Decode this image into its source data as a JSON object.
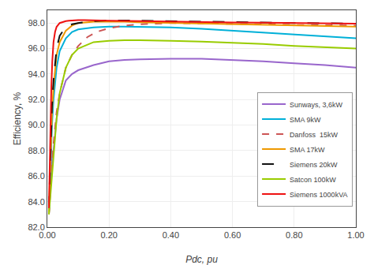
{
  "chart_data": {
    "type": "line",
    "x_label": "Pdc, pu",
    "y_label": "Efficiency, %",
    "xlim": [
      0.0,
      1.0
    ],
    "ylim": [
      82.0,
      99.0
    ],
    "xticks": [
      {
        "value": 0.0,
        "label": "0.00"
      },
      {
        "value": 0.2,
        "label": "0.20"
      },
      {
        "value": 0.4,
        "label": "0.40"
      },
      {
        "value": 0.6,
        "label": "0.60"
      },
      {
        "value": 0.8,
        "label": "0.80"
      },
      {
        "value": 1.0,
        "label": "1.00"
      }
    ],
    "yticks": [
      {
        "value": 82.0,
        "label": "82.0"
      },
      {
        "value": 84.0,
        "label": "84.0"
      },
      {
        "value": 86.0,
        "label": "86.0"
      },
      {
        "value": 88.0,
        "label": "88.0"
      },
      {
        "value": 90.0,
        "label": "90.0"
      },
      {
        "value": 92.0,
        "label": "92.0"
      },
      {
        "value": 94.0,
        "label": "94.0"
      },
      {
        "value": 96.0,
        "label": "96.0"
      },
      {
        "value": 98.0,
        "label": "98.0"
      }
    ],
    "grid": true,
    "legend": "right",
    "series": [
      {
        "name": "Sunways, 3,6kW",
        "color": "#9966cc",
        "line_style": "solid",
        "x": [
          0.005,
          0.01,
          0.015,
          0.02,
          0.03,
          0.04,
          0.06,
          0.08,
          0.1,
          0.15,
          0.2,
          0.25,
          0.3,
          0.4,
          0.5,
          0.6,
          0.7,
          0.8,
          0.9,
          1.0
        ],
        "values": [
          83.0,
          85.5,
          87.0,
          88.0,
          90.5,
          92.0,
          93.5,
          94.0,
          94.3,
          94.7,
          95.0,
          95.1,
          95.15,
          95.2,
          95.2,
          95.1,
          95.0,
          94.85,
          94.7,
          94.5
        ]
      },
      {
        "name": "SMA 9kW",
        "color": "#00b0d8",
        "line_style": "solid",
        "x": [
          0.005,
          0.01,
          0.015,
          0.02,
          0.03,
          0.04,
          0.06,
          0.08,
          0.1,
          0.15,
          0.2,
          0.25,
          0.3,
          0.4,
          0.5,
          0.6,
          0.7,
          0.8,
          0.9,
          1.0
        ],
        "values": [
          83.0,
          87.0,
          90.0,
          92.0,
          94.5,
          95.8,
          96.8,
          97.3,
          97.5,
          97.65,
          97.72,
          97.72,
          97.7,
          97.65,
          97.55,
          97.4,
          97.25,
          97.1,
          96.95,
          96.8
        ]
      },
      {
        "name": "Danfoss  15kW",
        "color": "#cc5555",
        "line_style": "dashed",
        "x": [
          0.005,
          0.01,
          0.015,
          0.02,
          0.03,
          0.04,
          0.06,
          0.08,
          0.1,
          0.13,
          0.16,
          0.2,
          0.25,
          0.3,
          0.4,
          0.5,
          0.6,
          0.7,
          0.8,
          0.9,
          1.0
        ],
        "values": [
          83.0,
          85.0,
          87.0,
          88.5,
          91.0,
          92.5,
          94.5,
          95.5,
          96.2,
          96.9,
          97.3,
          97.6,
          97.8,
          97.9,
          98.0,
          97.98,
          97.95,
          97.9,
          97.85,
          97.82,
          97.8
        ]
      },
      {
        "name": "SMA 17kW",
        "color": "#ee9900",
        "line_style": "solid",
        "x": [
          0.005,
          0.01,
          0.015,
          0.02,
          0.03,
          0.04,
          0.06,
          0.08,
          0.1,
          0.15,
          0.2,
          0.25,
          0.3,
          0.4,
          0.5,
          0.6,
          0.7,
          0.8,
          0.9,
          1.0
        ],
        "values": [
          83.0,
          87.5,
          91.0,
          93.0,
          95.5,
          96.5,
          97.4,
          97.8,
          98.0,
          98.1,
          98.12,
          98.1,
          98.05,
          98.0,
          97.95,
          97.9,
          97.85,
          97.8,
          97.75,
          97.72
        ]
      },
      {
        "name": "Siemens 20kW",
        "color": "#111111",
        "line_style": "longdash",
        "x": [
          0.005,
          0.01,
          0.015,
          0.02,
          0.03,
          0.04,
          0.06,
          0.08,
          0.1,
          0.15,
          0.2,
          0.25,
          0.3,
          0.4,
          0.5,
          0.6,
          0.7,
          0.8,
          0.9,
          1.0
        ],
        "values": [
          83.5,
          88.0,
          91.5,
          93.5,
          96.0,
          97.0,
          97.7,
          97.9,
          98.0,
          98.15,
          98.2,
          98.2,
          98.18,
          98.12,
          98.08,
          98.05,
          98.02,
          98.0,
          97.98,
          97.95
        ]
      },
      {
        "name": "Satcon 100kW",
        "color": "#99cc00",
        "line_style": "solid",
        "x": [
          0.005,
          0.01,
          0.015,
          0.02,
          0.03,
          0.04,
          0.06,
          0.08,
          0.1,
          0.15,
          0.2,
          0.25,
          0.3,
          0.4,
          0.5,
          0.6,
          0.7,
          0.8,
          0.9,
          1.0
        ],
        "values": [
          83.0,
          84.5,
          86.0,
          87.5,
          90.5,
          92.5,
          94.5,
          95.5,
          96.0,
          96.5,
          96.6,
          96.65,
          96.65,
          96.6,
          96.55,
          96.45,
          96.35,
          96.2,
          96.1,
          96.0
        ]
      },
      {
        "name": "Siemens 1000kVA",
        "color": "#ee1111",
        "line_style": "solid",
        "x": [
          0.005,
          0.008,
          0.01,
          0.013,
          0.016,
          0.02,
          0.025,
          0.03,
          0.04,
          0.05,
          0.06,
          0.07,
          0.08,
          0.1,
          0.12,
          0.15,
          0.2,
          0.3,
          0.4,
          0.5,
          0.6,
          0.7,
          0.8,
          0.9,
          1.0
        ],
        "values": [
          83.5,
          87.5,
          90.0,
          93.0,
          95.0,
          96.5,
          97.3,
          97.7,
          98.0,
          98.1,
          98.15,
          98.18,
          98.2,
          98.22,
          98.22,
          98.2,
          98.18,
          98.15,
          98.1,
          98.07,
          98.04,
          98.02,
          98.0,
          97.98,
          97.95
        ]
      }
    ]
  }
}
